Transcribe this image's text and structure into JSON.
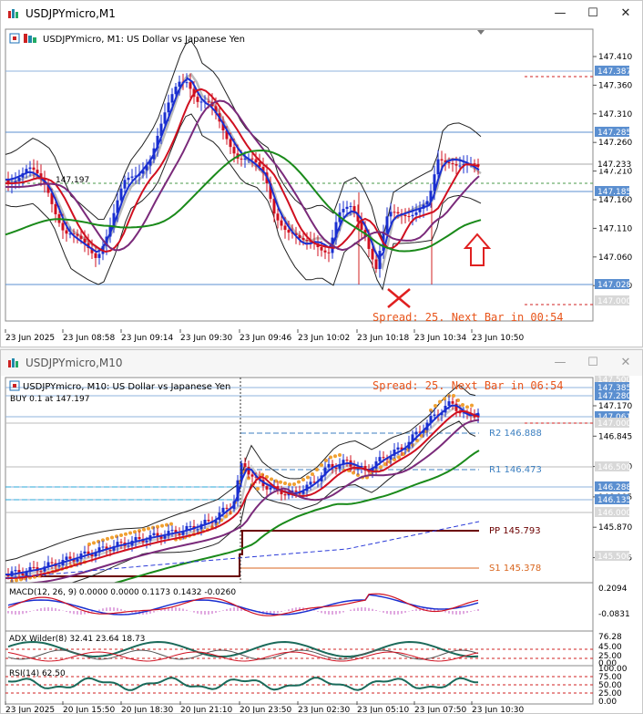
{
  "window_m1": {
    "title": "USDJPYmicro,M1",
    "chart_title": "USDJPYmicro, M1:  US Dollar vs Japanese Yen",
    "bid_line_label": "147.197",
    "spread_text": "Spread: 25. Next Bar in 00:54",
    "price_ticks": [
      "147.410",
      "147.360",
      "147.310",
      "147.260",
      "147.210",
      "147.160",
      "147.110",
      "147.060",
      "147.010"
    ],
    "price_tags": [
      {
        "label": "147.387",
        "style": "blue"
      },
      {
        "label": "147.285",
        "style": "blue"
      },
      {
        "label": "147.233",
        "style": "plain"
      },
      {
        "label": "147.185",
        "style": "blue"
      },
      {
        "label": "147.028",
        "style": "blue"
      },
      {
        "label": "147.000",
        "style": "gray"
      }
    ],
    "time_ticks": [
      "23 Jun 2025",
      "23 Jun 08:58",
      "23 Jun 09:14",
      "23 Jun 09:30",
      "23 Jun 09:46",
      "23 Jun 10:02",
      "23 Jun 10:18",
      "23 Jun 10:34",
      "23 Jun 10:50"
    ]
  },
  "window_m10": {
    "title": "USDJPYmicro,M10",
    "chart_title": "USDJPYmicro, M10:  US Dollar vs Japanese Yen",
    "order_label": "BUY 0.1 at 147.197",
    "spread_text": "Spread: 25. Next Bar in 06:54",
    "price_ticks": [
      "147.170",
      "146.845",
      "146.520",
      "146.195",
      "145.870",
      "145.545"
    ],
    "price_tags": [
      {
        "label": "147.500",
        "style": "gray"
      },
      {
        "label": "147.385",
        "style": "blue"
      },
      {
        "label": "147.280",
        "style": "blue"
      },
      {
        "label": "147.061",
        "style": "blue"
      },
      {
        "label": "147.000",
        "style": "gray"
      },
      {
        "label": "146.500",
        "style": "gray"
      },
      {
        "label": "146.288",
        "style": "blue"
      },
      {
        "label": "146.135",
        "style": "blue"
      },
      {
        "label": "146.000",
        "style": "gray"
      },
      {
        "label": "145.500",
        "style": "gray"
      }
    ],
    "pivots": [
      {
        "label": "R2 146.888",
        "color": "#3c7fc0"
      },
      {
        "label": "R1 146.473",
        "color": "#3c7fc0"
      },
      {
        "label": "PP 145.793",
        "color": "#6b0000"
      },
      {
        "label": "S1 145.378",
        "color": "#d9661f"
      }
    ],
    "macd": {
      "label": "MACD(12, 26, 9) 0.0000 0.0000 0.1173 0.1432 -0.0260",
      "ticks": [
        "0.2094",
        "-0.0831"
      ]
    },
    "adx": {
      "label": "ADX Wilder(8) 32.41 23.64 18.73",
      "ticks": [
        "76.28",
        "45.00",
        "25.00",
        "0.00"
      ]
    },
    "rsi": {
      "label": "RSI(14) 62.50",
      "ticks": [
        "100.00",
        "75.00",
        "50.00",
        "25.00",
        "0.00"
      ]
    },
    "time_ticks": [
      "23 Jun 2025",
      "20 Jun 15:50",
      "20 Jun 18:30",
      "20 Jun 21:10",
      "20 Jun 23:50",
      "23 Jun 02:30",
      "23 Jun 05:10",
      "23 Jun 07:50",
      "23 Jun 10:30"
    ]
  },
  "controls": {
    "minimize": "—",
    "maximize": "☐",
    "close": "✕"
  }
}
